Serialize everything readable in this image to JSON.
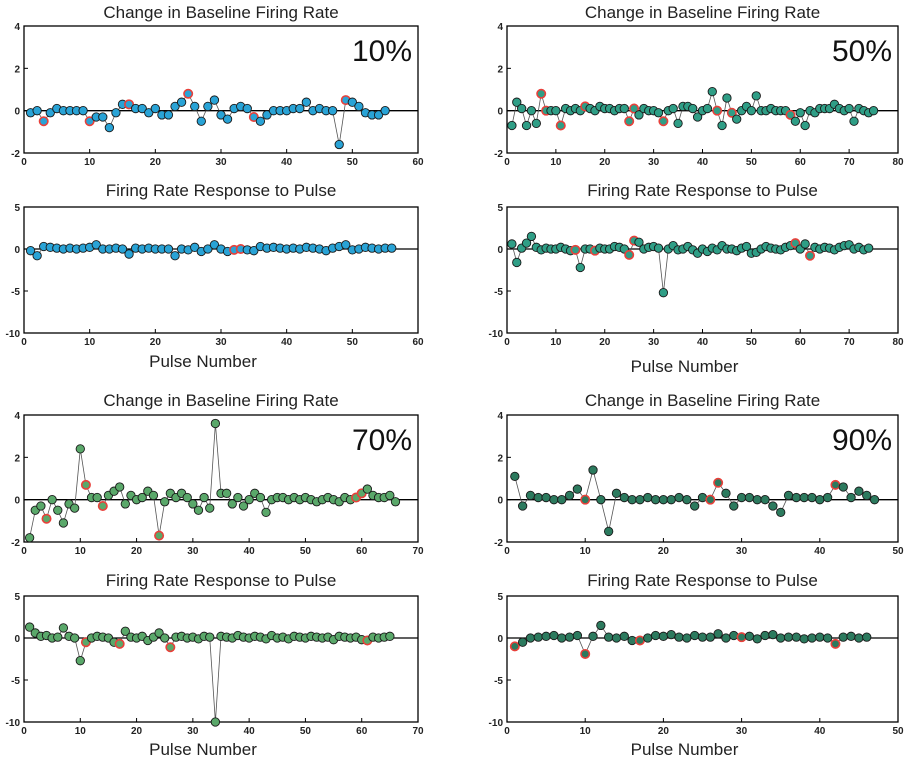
{
  "colors": {
    "series_10": "#29a3d6",
    "series_50": "#2f9e86",
    "series_70": "#5aa86a",
    "series_90": "#2c7a5e",
    "point_edge": "#1a1a1a",
    "highlight_edge": "#e8403a"
  },
  "chart_data": [
    {
      "id": "p10_baseline",
      "type": "scatter",
      "color_key": "series_10",
      "title": "Change in Baseline Firing Rate",
      "annotation": "10%",
      "xlabel": "",
      "xlim": [
        0,
        60
      ],
      "ylim": [
        -2,
        4
      ],
      "xticks": [
        0,
        10,
        20,
        30,
        40,
        50,
        60
      ],
      "yticks": [
        -2,
        0,
        2,
        4
      ],
      "y": [
        -0.1,
        0.0,
        -0.5,
        -0.1,
        0.1,
        0.0,
        0.0,
        0.0,
        0.0,
        -0.5,
        -0.3,
        -0.3,
        -0.8,
        -0.1,
        0.3,
        0.3,
        0.1,
        0.1,
        -0.1,
        0.1,
        -0.2,
        -0.2,
        0.2,
        0.4,
        0.8,
        0.2,
        -0.5,
        0.2,
        0.5,
        -0.2,
        -0.4,
        0.1,
        0.2,
        0.1,
        -0.3,
        -0.5,
        -0.2,
        0.0,
        0.0,
        0.0,
        0.1,
        0.1,
        0.4,
        0.0,
        0.1,
        0.0,
        0.0,
        -1.6,
        0.5,
        0.4,
        0.2,
        -0.1,
        -0.2,
        -0.2,
        0.0
      ],
      "highlight": [
        3,
        10,
        16,
        25,
        35,
        49
      ]
    },
    {
      "id": "p50_baseline",
      "type": "scatter",
      "color_key": "series_50",
      "title": "Change in Baseline Firing Rate",
      "annotation": "50%",
      "xlabel": "",
      "xlim": [
        0,
        80
      ],
      "ylim": [
        -2,
        4
      ],
      "xticks": [
        0,
        10,
        20,
        30,
        40,
        50,
        60,
        70,
        80
      ],
      "yticks": [
        -2,
        0,
        2,
        4
      ],
      "y": [
        -0.7,
        0.4,
        0.1,
        -0.7,
        0.0,
        -0.6,
        0.8,
        0.0,
        0.0,
        0.0,
        -0.7,
        0.1,
        0.0,
        0.1,
        0.0,
        0.2,
        0.1,
        0.0,
        0.2,
        0.1,
        0.1,
        0.0,
        0.1,
        0.1,
        -0.5,
        0.1,
        -0.2,
        0.1,
        0.0,
        0.0,
        -0.1,
        -0.5,
        0.0,
        0.1,
        -0.6,
        0.2,
        0.2,
        0.1,
        -0.3,
        0.0,
        0.1,
        0.9,
        0.0,
        -0.7,
        0.6,
        -0.1,
        -0.4,
        0.0,
        0.2,
        0.0,
        0.7,
        0.0,
        0.0,
        0.1,
        0.0,
        0.0,
        0.0,
        -0.2,
        -0.5,
        -0.1,
        -0.7,
        0.0,
        -0.1,
        0.1,
        0.1,
        0.1,
        0.3,
        0.1,
        0.0,
        0.1,
        -0.5,
        0.1,
        0.0,
        -0.1,
        0.0
      ],
      "highlight": [
        7,
        8,
        11,
        16,
        25,
        26,
        32,
        43,
        46,
        58
      ]
    },
    {
      "id": "p10_response",
      "type": "scatter",
      "color_key": "series_10",
      "title": "Firing Rate Response to Pulse",
      "annotation": "",
      "xlabel": "Pulse Number",
      "xlim": [
        0,
        60
      ],
      "ylim": [
        -10,
        5
      ],
      "xticks": [
        0,
        10,
        20,
        30,
        40,
        50,
        60
      ],
      "yticks": [
        -10,
        -5,
        0,
        5
      ],
      "y": [
        -0.2,
        -0.8,
        0.3,
        0.2,
        0.1,
        0.0,
        0.1,
        0.0,
        0.1,
        0.2,
        0.5,
        0.0,
        0.0,
        0.1,
        0.0,
        -0.6,
        0.1,
        0.0,
        0.1,
        0.0,
        0.0,
        0.0,
        -0.8,
        0.0,
        -0.1,
        0.2,
        -0.3,
        0.0,
        0.5,
        0.0,
        -0.3,
        -0.1,
        0.0,
        -0.1,
        -0.2,
        0.3,
        0.1,
        0.2,
        0.1,
        0.0,
        0.1,
        0.0,
        0.2,
        0.1,
        0.0,
        -0.2,
        0.1,
        0.3,
        0.5,
        -0.1,
        0.0,
        0.2,
        0.1,
        0.0,
        0.1,
        0.1
      ],
      "highlight": [
        32,
        33
      ]
    },
    {
      "id": "p50_response",
      "type": "scatter",
      "color_key": "series_50",
      "title": "Firing Rate Response to Pulse",
      "annotation": "",
      "xlabel": "Pulse Number",
      "xlim": [
        0,
        80
      ],
      "ylim": [
        -10,
        5
      ],
      "xticks": [
        0,
        10,
        20,
        30,
        40,
        50,
        60,
        70,
        80
      ],
      "yticks": [
        -10,
        -5,
        0,
        5
      ],
      "y": [
        0.6,
        -1.6,
        0.1,
        0.7,
        1.5,
        0.2,
        -0.1,
        0.1,
        0.0,
        0.0,
        0.2,
        0.0,
        -0.2,
        -0.1,
        -2.2,
        0.0,
        0.0,
        -0.2,
        0.1,
        0.0,
        0.0,
        0.3,
        0.2,
        0.0,
        -0.7,
        1.0,
        0.8,
        0.0,
        0.2,
        0.3,
        0.1,
        -5.2,
        0.0,
        0.4,
        -0.1,
        0.0,
        0.3,
        -0.1,
        -0.5,
        0.0,
        -0.3,
        0.1,
        -0.1,
        0.4,
        0.0,
        0.0,
        -0.2,
        0.1,
        0.3,
        -0.5,
        -0.4,
        0.0,
        0.3,
        0.1,
        0.0,
        -0.1,
        0.2,
        0.4,
        0.7,
        0.0,
        0.6,
        -0.8,
        0.2,
        0.0,
        0.2,
        0.1,
        -0.1,
        0.2,
        0.4,
        0.5,
        0.0,
        0.2,
        -0.1,
        0.1
      ],
      "highlight": [
        14,
        18,
        25,
        26,
        59,
        62
      ]
    },
    {
      "id": "p70_baseline",
      "type": "scatter",
      "color_key": "series_70",
      "title": "Change in Baseline Firing Rate",
      "annotation": "70%",
      "xlabel": "",
      "xlim": [
        0,
        70
      ],
      "ylim": [
        -2,
        4
      ],
      "xticks": [
        0,
        10,
        20,
        30,
        40,
        50,
        60,
        70
      ],
      "yticks": [
        -2,
        0,
        2,
        4
      ],
      "y": [
        -1.8,
        -0.5,
        -0.3,
        -0.9,
        0.0,
        -0.5,
        -1.1,
        -0.2,
        -0.4,
        2.4,
        0.7,
        0.1,
        0.1,
        -0.3,
        0.2,
        0.4,
        0.6,
        -0.2,
        0.2,
        0.0,
        0.1,
        0.4,
        0.2,
        -1.7,
        -0.1,
        0.3,
        0.1,
        0.3,
        0.1,
        -0.2,
        -0.5,
        0.1,
        -0.4,
        3.6,
        0.3,
        0.3,
        -0.2,
        0.1,
        -0.3,
        0.0,
        0.3,
        0.1,
        -0.6,
        0.0,
        0.1,
        0.1,
        0.0,
        0.1,
        0.0,
        0.1,
        0.0,
        -0.1,
        0.0,
        0.1,
        0.0,
        -0.1,
        0.1,
        0.0,
        0.1,
        0.3,
        0.5,
        0.2,
        0.1,
        0.1,
        0.2,
        -0.1
      ],
      "highlight": [
        4,
        11,
        14,
        24,
        59,
        60
      ]
    },
    {
      "id": "p90_baseline",
      "type": "scatter",
      "color_key": "series_90",
      "title": "Change in Baseline Firing Rate",
      "annotation": "90%",
      "xlabel": "",
      "xlim": [
        0,
        50
      ],
      "ylim": [
        -2,
        4
      ],
      "xticks": [
        0,
        10,
        20,
        30,
        40,
        50
      ],
      "yticks": [
        -2,
        0,
        2,
        4
      ],
      "y": [
        1.1,
        -0.3,
        0.2,
        0.1,
        0.1,
        0.0,
        0.0,
        0.2,
        0.5,
        0.0,
        1.4,
        0.0,
        -1.5,
        0.3,
        0.1,
        0.0,
        0.0,
        0.1,
        0.0,
        0.0,
        0.0,
        0.1,
        0.0,
        -0.3,
        0.1,
        0.0,
        0.8,
        0.3,
        -0.3,
        0.1,
        0.1,
        0.0,
        0.0,
        -0.3,
        -0.6,
        0.2,
        0.1,
        0.1,
        0.1,
        0.0,
        0.1,
        0.7,
        0.6,
        0.1,
        0.4,
        0.2,
        0.0
      ],
      "highlight": [
        10,
        26,
        27,
        42
      ]
    },
    {
      "id": "p70_response",
      "type": "scatter",
      "color_key": "series_70",
      "title": "Firing Rate Response to Pulse",
      "annotation": "",
      "xlabel": "Pulse Number",
      "xlim": [
        0,
        70
      ],
      "ylim": [
        -10,
        5
      ],
      "xticks": [
        0,
        10,
        20,
        30,
        40,
        50,
        60,
        70
      ],
      "yticks": [
        -10,
        -5,
        0,
        5
      ],
      "y": [
        1.3,
        0.6,
        0.2,
        0.3,
        0.0,
        0.1,
        1.2,
        0.2,
        0.0,
        -2.7,
        -0.5,
        0.0,
        0.2,
        0.1,
        0.0,
        -0.5,
        -0.7,
        0.8,
        0.1,
        0.0,
        0.2,
        -0.3,
        0.1,
        0.6,
        0.0,
        -1.1,
        0.1,
        0.2,
        0.0,
        0.1,
        -0.1,
        0.2,
        0.1,
        -10.0,
        0.2,
        0.1,
        0.0,
        0.3,
        0.1,
        0.0,
        0.2,
        0.1,
        -0.1,
        0.3,
        0.0,
        0.1,
        -0.1,
        0.2,
        0.1,
        0.0,
        0.2,
        0.1,
        0.0,
        0.1,
        -0.2,
        0.2,
        0.1,
        0.0,
        0.1,
        -0.2,
        -0.3,
        0.1,
        0.0,
        0.1,
        0.2
      ],
      "highlight": [
        11,
        17,
        26,
        61
      ]
    },
    {
      "id": "p90_response",
      "type": "scatter",
      "color_key": "series_90",
      "title": "Firing Rate Response to Pulse",
      "annotation": "",
      "xlabel": "Pulse Number",
      "xlim": [
        0,
        50
      ],
      "ylim": [
        -10,
        5
      ],
      "xticks": [
        0,
        10,
        20,
        30,
        40,
        50
      ],
      "yticks": [
        -10,
        -5,
        0,
        5
      ],
      "y": [
        -1.0,
        -0.5,
        0.0,
        0.1,
        0.2,
        0.3,
        0.0,
        0.1,
        0.3,
        -1.9,
        0.2,
        1.5,
        0.1,
        0.0,
        0.2,
        -0.3,
        -0.3,
        0.0,
        0.3,
        0.2,
        0.4,
        0.1,
        0.0,
        0.3,
        0.1,
        0.1,
        0.5,
        0.0,
        0.3,
        0.1,
        0.2,
        -0.1,
        0.3,
        0.4,
        0.0,
        0.1,
        0.1,
        -0.1,
        0.0,
        0.1,
        0.0,
        -0.7,
        0.1,
        0.2,
        0.0,
        0.1
      ],
      "highlight": [
        1,
        10,
        17,
        30,
        42
      ]
    }
  ]
}
